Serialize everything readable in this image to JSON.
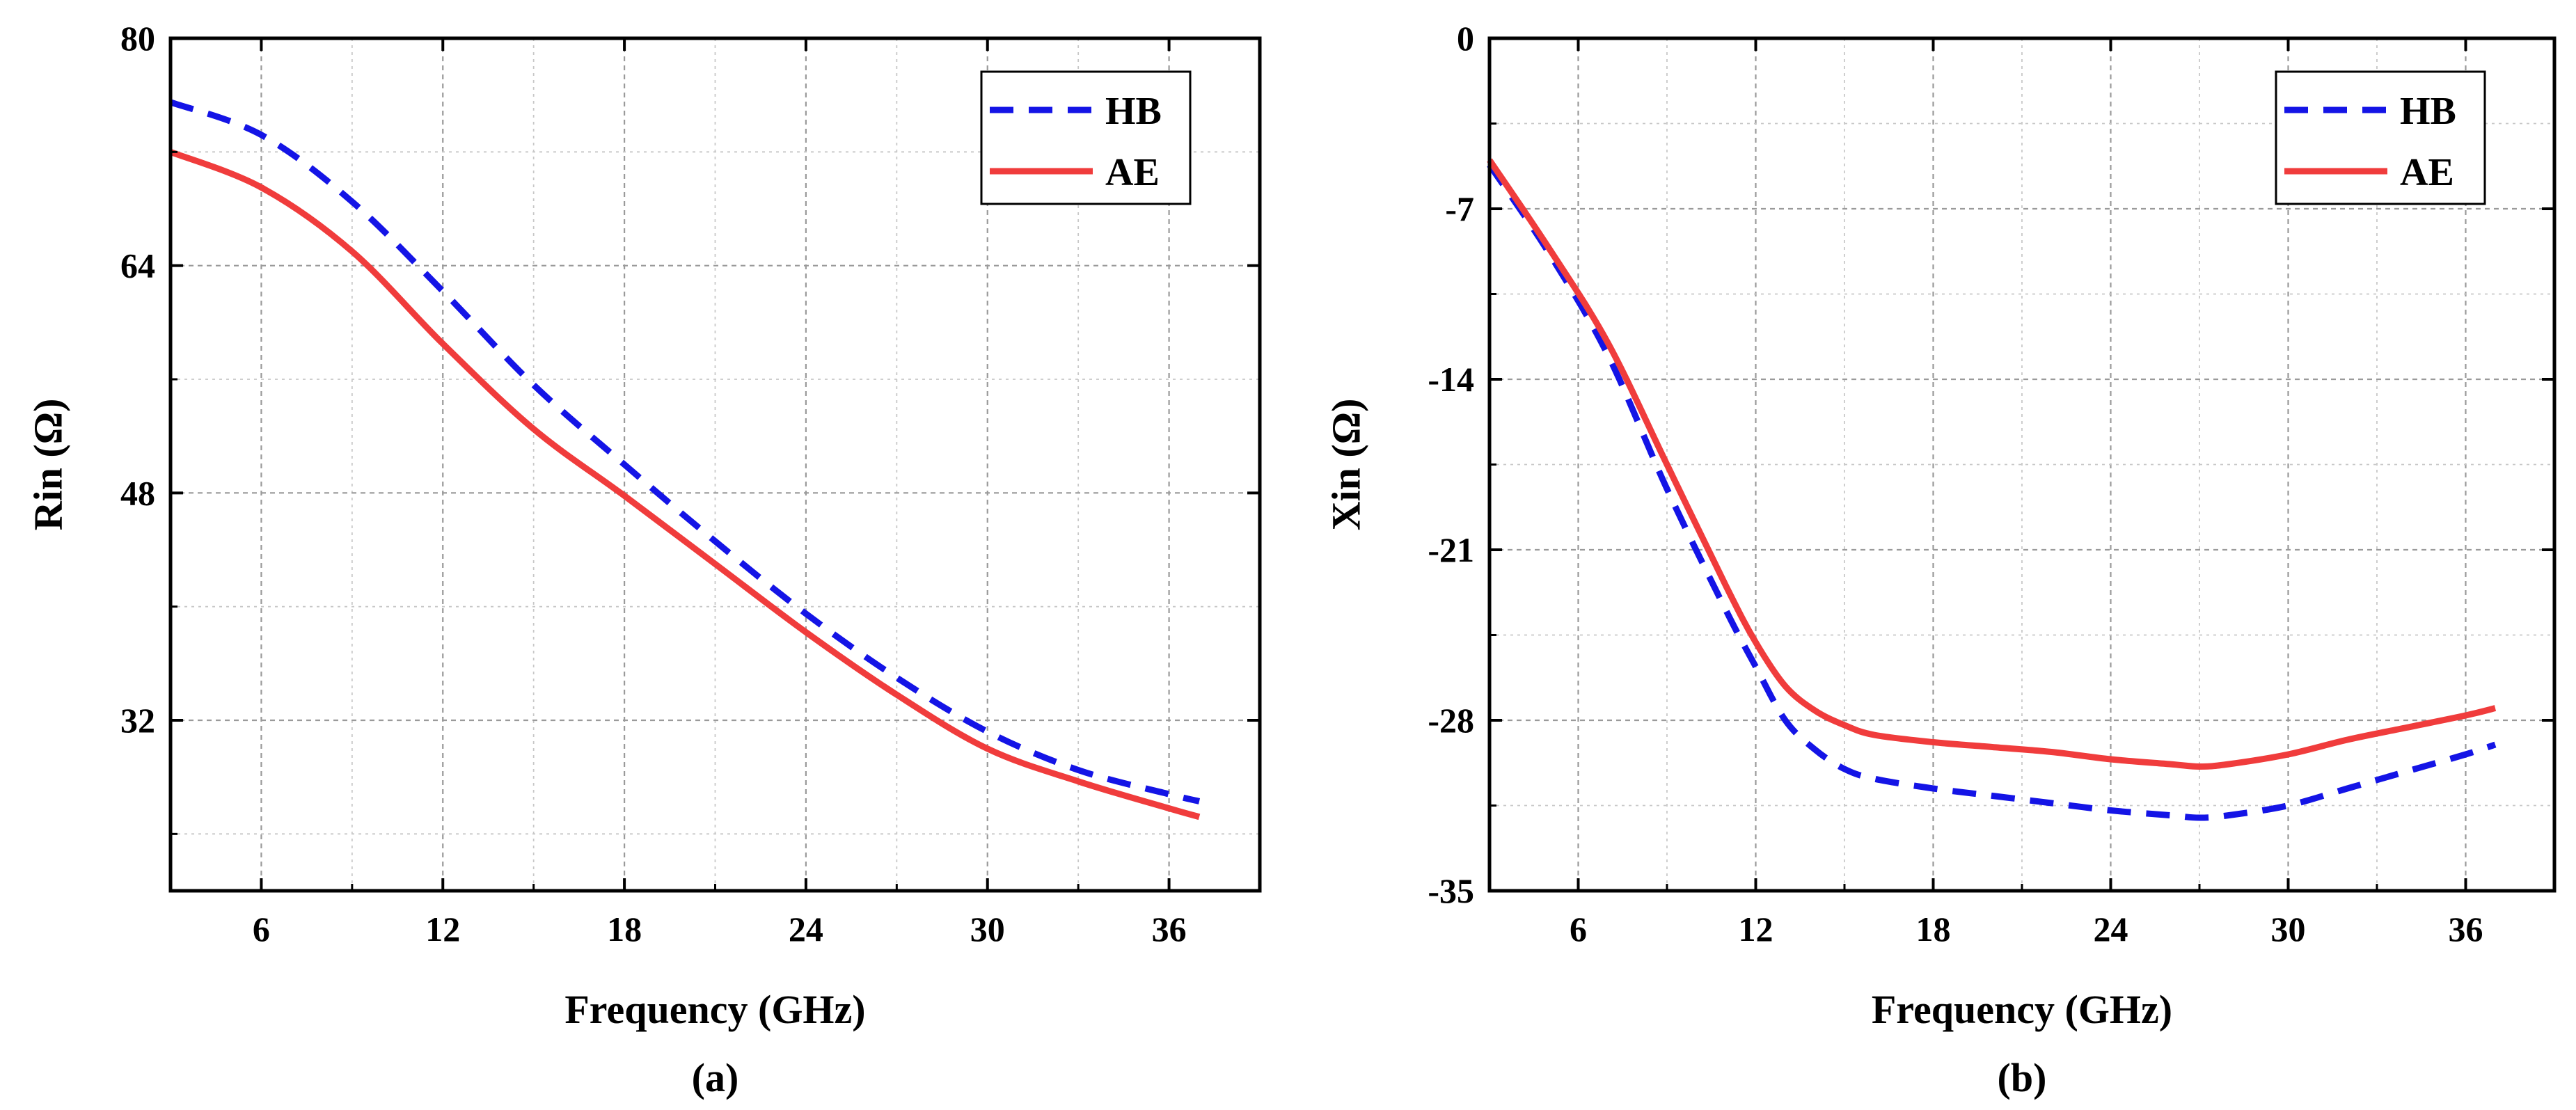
{
  "chart_data": [
    {
      "type": "line",
      "panel_label": "(a)",
      "xlabel": "Frequency (GHz)",
      "ylabel": "Rin (Ω)",
      "xlim": [
        3,
        39
      ],
      "ylim": [
        20,
        80
      ],
      "x_ticks": [
        6,
        12,
        18,
        24,
        30,
        36
      ],
      "y_ticks": [
        32,
        48,
        64,
        80
      ],
      "x_minor_ticks": [
        9,
        15,
        21,
        27,
        33
      ],
      "y_minor_ticks": [
        24,
        40,
        56,
        72
      ],
      "grid": true,
      "legend_position": "top-right",
      "series": [
        {
          "name": "HB",
          "color": "#1414e6",
          "style": "dashed",
          "x": [
            3,
            6,
            9,
            12,
            15,
            18,
            21,
            24,
            27,
            30,
            33,
            36,
            37
          ],
          "y": [
            75.5,
            73.2,
            68.5,
            62.2,
            55.6,
            50.0,
            44.6,
            39.5,
            35.0,
            31.2,
            28.5,
            26.8,
            26.3
          ]
        },
        {
          "name": "AE",
          "color": "#f03c3c",
          "style": "solid",
          "x": [
            3,
            6,
            9,
            12,
            15,
            18,
            21,
            24,
            27,
            30,
            33,
            36,
            37
          ],
          "y": [
            72.0,
            69.5,
            65.0,
            58.5,
            52.5,
            47.8,
            43.0,
            38.2,
            33.8,
            30.0,
            27.7,
            25.8,
            25.2
          ]
        }
      ]
    },
    {
      "type": "line",
      "panel_label": "(b)",
      "xlabel": "Frequency (GHz)",
      "ylabel": "Xin (Ω)",
      "xlim": [
        3,
        39
      ],
      "ylim": [
        -35,
        0
      ],
      "x_ticks": [
        6,
        12,
        18,
        24,
        30,
        36
      ],
      "y_ticks": [
        0,
        -7,
        -14,
        -21,
        -28,
        -35
      ],
      "x_minor_ticks": [
        9,
        15,
        21,
        27,
        33
      ],
      "y_minor_ticks": [
        -3.5,
        -10.5,
        -17.5,
        -24.5,
        -31.5
      ],
      "grid": true,
      "legend_position": "top-right",
      "series": [
        {
          "name": "HB",
          "color": "#1414e6",
          "style": "dashed",
          "x": [
            3,
            5,
            7,
            9,
            11,
            12,
            13,
            14,
            15,
            16,
            18,
            20,
            22,
            24,
            26,
            27,
            28,
            30,
            32,
            34,
            36,
            37
          ],
          "y": [
            -5.2,
            -8.8,
            -13.0,
            -18.5,
            -23.5,
            -25.8,
            -28.0,
            -29.2,
            -30.0,
            -30.4,
            -30.8,
            -31.1,
            -31.4,
            -31.7,
            -31.9,
            -32.0,
            -31.9,
            -31.5,
            -30.8,
            -30.1,
            -29.4,
            -29.0
          ]
        },
        {
          "name": "AE",
          "color": "#f03c3c",
          "style": "solid",
          "x": [
            3,
            5,
            7,
            9,
            11,
            12,
            13,
            14,
            15,
            16,
            18,
            20,
            22,
            24,
            26,
            27,
            28,
            30,
            32,
            34,
            36,
            37
          ],
          "y": [
            -5.0,
            -8.6,
            -12.5,
            -17.5,
            -22.5,
            -24.8,
            -26.6,
            -27.6,
            -28.2,
            -28.6,
            -28.9,
            -29.1,
            -29.3,
            -29.6,
            -29.8,
            -29.9,
            -29.8,
            -29.4,
            -28.8,
            -28.3,
            -27.8,
            -27.5
          ]
        }
      ]
    }
  ]
}
